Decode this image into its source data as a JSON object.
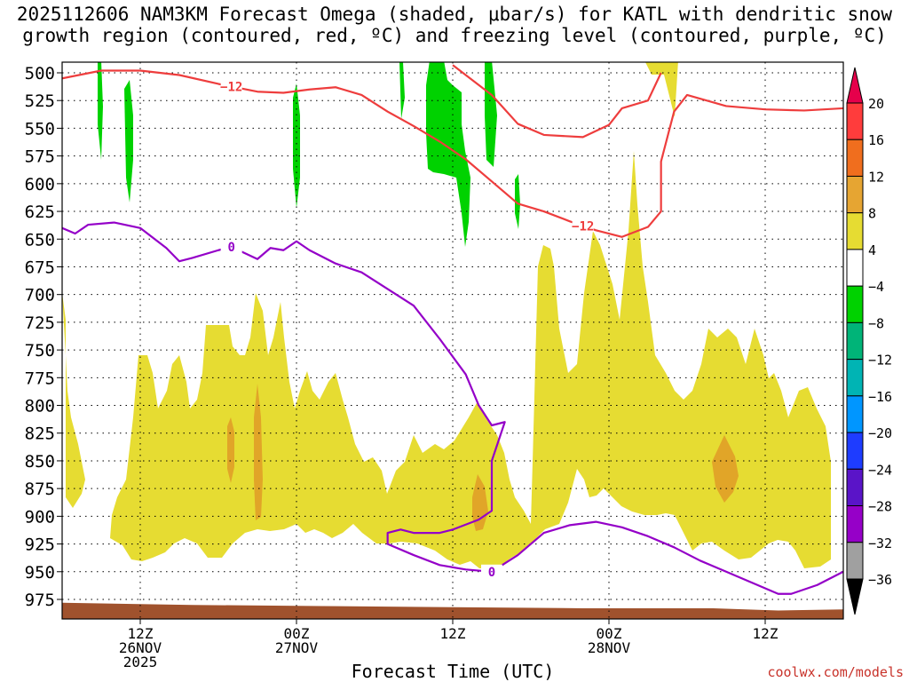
{
  "title_line1": "2025112606 NAM3KM Forecast Omega (shaded, μbar/s) for KATL with dendritic snow",
  "title_line2": "growth region (contoured, red, ºC) and freezing level (contoured, purple, ºC)",
  "credit": "coolwx.com/models",
  "colors": {
    "red_contour": "#ee3d3d",
    "purple_contour": "#9400c8",
    "yellow": "#e6dc32",
    "orange": "#e1a528",
    "green": "#00d200",
    "ground": "#a0522d"
  },
  "chart_data": {
    "type": "heatmap",
    "xlabel": "Forecast Time (UTC)",
    "ylabel": "",
    "x_range_hours": [
      0,
      60
    ],
    "x_ticks": [
      {
        "hour": 6,
        "lines": [
          "12Z",
          "26NOV",
          "2025"
        ]
      },
      {
        "hour": 18,
        "lines": [
          "00Z",
          "27NOV"
        ]
      },
      {
        "hour": 30,
        "lines": [
          "12Z"
        ]
      },
      {
        "hour": 42,
        "lines": [
          "00Z",
          "28NOV"
        ]
      },
      {
        "hour": 54,
        "lines": [
          "12Z"
        ]
      }
    ],
    "y_ticks": [
      500,
      525,
      550,
      575,
      600,
      625,
      650,
      675,
      700,
      725,
      750,
      775,
      800,
      825,
      850,
      875,
      900,
      925,
      950,
      975
    ],
    "ylim": [
      500,
      1000
    ],
    "grid": true,
    "colorbar": {
      "labels": [
        "20",
        "16",
        "12",
        "8",
        "4",
        "−4",
        "−8",
        "−12",
        "−16",
        "−20",
        "−24",
        "−28",
        "−32",
        "−36"
      ],
      "colors": [
        "#e6004b",
        "#ff3c3c",
        "#f06e1e",
        "#e6a532",
        "#e6dc32",
        "#ffffff",
        "#00d200",
        "#00b478",
        "#00b4b4",
        "#0096ff",
        "#1e3cff",
        "#5a14c8",
        "#9600c8",
        "#a0a0a0",
        "#000000"
      ]
    },
    "red_contour": {
      "label": "−12",
      "values": [
        [
          0,
          505
        ],
        [
          3,
          498
        ],
        [
          6,
          498
        ],
        [
          9,
          502
        ],
        [
          12,
          510
        ],
        [
          15,
          517
        ],
        [
          17,
          518
        ],
        [
          19,
          515
        ],
        [
          21,
          513
        ],
        [
          23,
          520
        ],
        [
          25,
          535
        ],
        [
          27,
          548
        ],
        [
          29,
          562
        ],
        [
          31,
          578
        ],
        [
          33,
          598
        ],
        [
          35,
          618
        ],
        [
          37,
          625
        ],
        [
          39,
          634
        ],
        [
          41,
          642
        ],
        [
          43,
          648
        ],
        [
          45,
          639
        ],
        [
          46,
          625
        ],
        [
          46,
          580
        ],
        [
          47,
          535
        ],
        [
          48,
          520
        ],
        [
          51,
          530
        ],
        [
          54,
          533
        ],
        [
          57,
          534
        ],
        [
          60,
          532
        ]
      ],
      "label_hour": 13,
      "label2_hour": 40
    },
    "red_contour_upper": {
      "values": [
        [
          30,
          493
        ],
        [
          33,
          520
        ],
        [
          35,
          546
        ],
        [
          37,
          556
        ],
        [
          40,
          558
        ],
        [
          42,
          547
        ],
        [
          43,
          532
        ],
        [
          45,
          525
        ],
        [
          46,
          500
        ]
      ]
    },
    "purple_contour": {
      "label": "0",
      "values": [
        [
          0,
          640
        ],
        [
          1,
          645
        ],
        [
          2,
          637
        ],
        [
          4,
          635
        ],
        [
          6,
          640
        ],
        [
          8,
          658
        ],
        [
          9,
          670
        ],
        [
          10,
          667
        ],
        [
          12,
          660
        ],
        [
          13,
          657
        ],
        [
          15,
          668
        ],
        [
          16,
          658
        ],
        [
          17,
          660
        ],
        [
          18,
          652
        ],
        [
          19,
          660
        ],
        [
          21,
          672
        ],
        [
          23,
          680
        ],
        [
          25,
          695
        ],
        [
          27,
          710
        ],
        [
          29,
          740
        ],
        [
          31,
          772
        ],
        [
          32,
          800
        ],
        [
          33,
          818
        ],
        [
          34,
          815
        ],
        [
          33,
          850
        ],
        [
          33,
          895
        ],
        [
          32,
          903
        ],
        [
          30,
          912
        ],
        [
          29,
          915
        ],
        [
          27,
          915
        ],
        [
          26,
          912
        ],
        [
          25,
          915
        ],
        [
          25,
          925
        ],
        [
          27,
          935
        ],
        [
          29,
          944
        ],
        [
          31,
          948
        ],
        [
          33,
          950
        ],
        [
          35,
          935
        ],
        [
          37,
          915
        ],
        [
          39,
          908
        ],
        [
          41,
          905
        ],
        [
          43,
          910
        ],
        [
          45,
          918
        ],
        [
          47,
          928
        ],
        [
          49,
          940
        ],
        [
          51,
          950
        ],
        [
          53,
          960
        ],
        [
          55,
          970
        ],
        [
          56,
          970
        ],
        [
          58,
          962
        ],
        [
          60,
          950
        ]
      ],
      "label_hour": 13,
      "label2_hour": 33
    },
    "ground_pressure": [
      [
        0,
        978
      ],
      [
        10,
        980
      ],
      [
        20,
        981
      ],
      [
        30,
        982
      ],
      [
        40,
        983
      ],
      [
        50,
        983
      ],
      [
        55,
        985
      ],
      [
        60,
        984
      ]
    ]
  }
}
